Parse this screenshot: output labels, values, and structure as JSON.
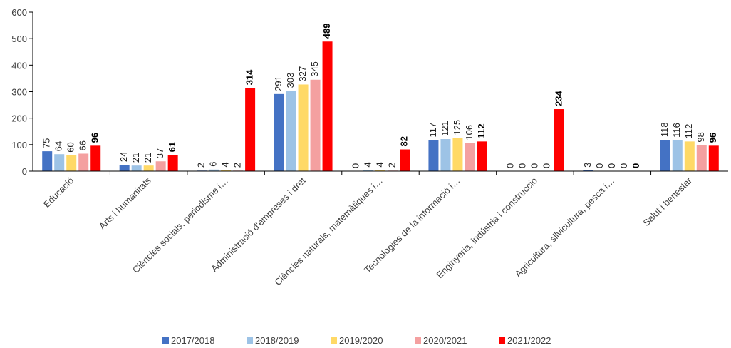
{
  "chart_data": {
    "type": "bar",
    "categories": [
      "Educació",
      "Arts i humanitats",
      "Ciències socials, periodisme i…",
      "Administració d'empreses i dret",
      "Ciències naturals, matemàtiques i…",
      "Tecnologies de la informació i…",
      "Enginyeria, indústria i construcció",
      "Agricultura, silvicultura, pesca i…",
      "Salut i benestar"
    ],
    "series": [
      {
        "name": "2017/2018",
        "color": "#4472c4",
        "values": [
          75,
          24,
          2,
          291,
          0,
          117,
          0,
          3,
          118
        ]
      },
      {
        "name": "2018/2019",
        "color": "#9dc3e6",
        "values": [
          64,
          21,
          6,
          303,
          4,
          121,
          0,
          0,
          116
        ]
      },
      {
        "name": "2019/2020",
        "color": "#ffd966",
        "values": [
          60,
          21,
          4,
          327,
          4,
          125,
          0,
          0,
          112
        ]
      },
      {
        "name": "2020/2021",
        "color": "#f4a0a0",
        "values": [
          66,
          37,
          2,
          345,
          2,
          106,
          0,
          0,
          98
        ]
      },
      {
        "name": "2021/2022",
        "color": "#ff0000",
        "values": [
          96,
          61,
          314,
          489,
          82,
          112,
          234,
          0,
          96
        ]
      }
    ],
    "ylim": [
      0,
      600
    ],
    "yticks": [
      0,
      100,
      200,
      300,
      400,
      500,
      600
    ],
    "grid": false,
    "legend": "bottom"
  }
}
